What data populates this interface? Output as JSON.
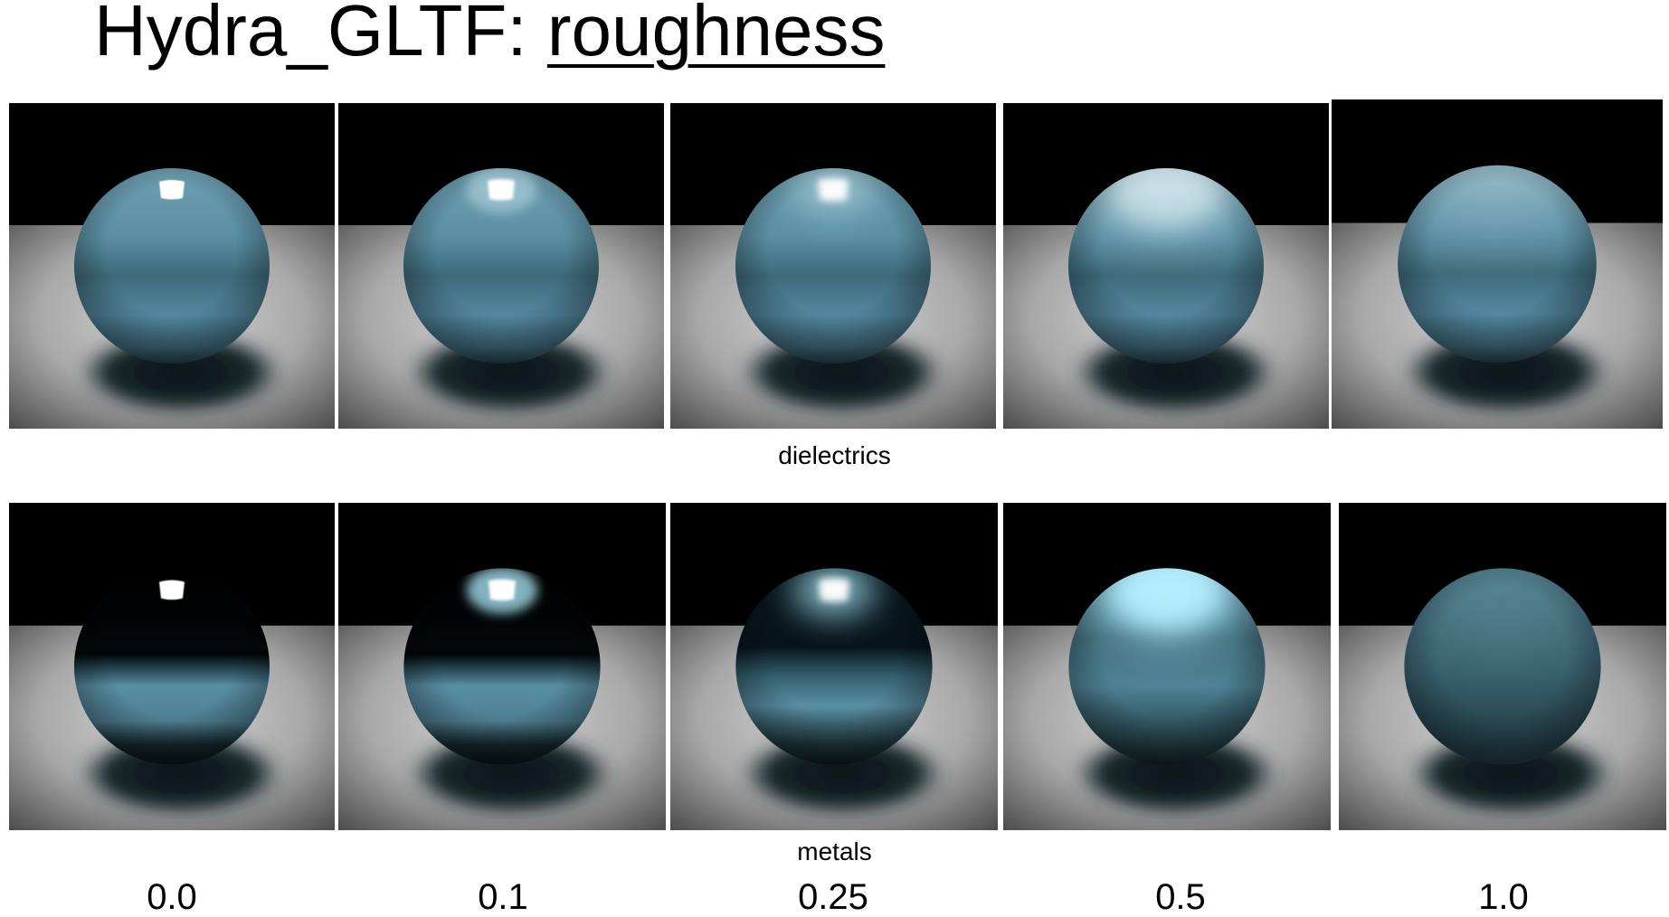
{
  "title": {
    "prefix": "Hydra_GLTF: ",
    "emphasis": "roughness"
  },
  "rows": [
    {
      "label": "dielectrics",
      "material": "dielectric"
    },
    {
      "label": "metals",
      "material": "metal"
    }
  ],
  "roughness_values": [
    "0.0",
    "0.1",
    "0.25",
    "0.5",
    "1.0"
  ],
  "colors": {
    "sphere_base": "#5a8fa3",
    "background": "#000000",
    "floor": "#d4d4d4",
    "highlight": "#ffffff"
  }
}
